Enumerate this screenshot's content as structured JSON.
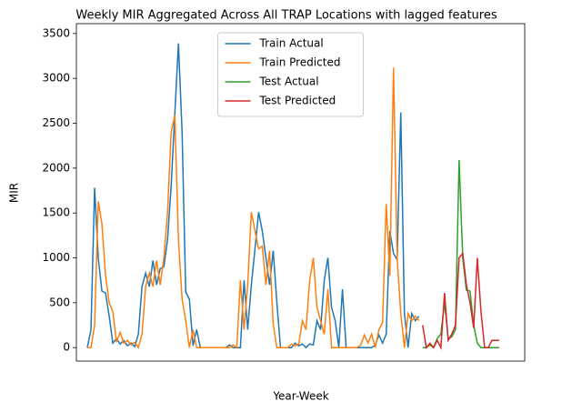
{
  "chart_data": {
    "type": "line",
    "title": "Weekly MIR Aggregated Across All TRAP Locations with lagged features",
    "x_label": "Year-Week",
    "y_label": "MIR",
    "x": [
      0,
      1,
      2,
      3,
      4,
      5,
      6,
      7,
      8,
      9,
      10,
      11,
      12,
      13,
      14,
      15,
      16,
      17,
      18,
      19,
      20,
      21,
      22,
      23,
      24,
      25,
      26,
      27,
      28,
      29,
      30,
      31,
      32,
      33,
      34,
      35,
      36,
      37,
      38,
      39,
      40,
      41,
      42,
      43,
      44,
      45,
      46,
      47,
      48,
      49,
      50,
      51,
      52,
      53,
      54,
      55,
      56,
      57,
      58,
      59,
      60,
      61,
      62,
      63,
      64,
      65,
      66,
      67,
      68,
      69,
      70,
      71,
      72,
      73,
      74,
      75,
      76,
      77,
      78,
      79,
      80,
      81,
      82,
      83,
      84,
      85,
      86,
      87,
      88,
      89,
      90,
      91,
      92,
      93,
      94,
      95,
      96,
      97,
      98,
      99,
      100,
      101,
      102,
      103,
      104,
      105,
      106,
      107,
      108,
      109,
      110,
      111,
      112,
      113
    ],
    "xlim": [
      -3,
      120
    ],
    "ylim": [
      -150,
      3610
    ],
    "yticks": [
      0,
      500,
      1000,
      1500,
      2000,
      2500,
      3000,
      3500
    ],
    "legend": "upper center",
    "series": [
      {
        "name": "Train Actual",
        "color": "#1f77b4",
        "values": [
          0,
          200,
          1780,
          1000,
          630,
          610,
          350,
          50,
          100,
          40,
          80,
          20,
          50,
          10,
          150,
          680,
          830,
          680,
          970,
          700,
          880,
          900,
          1200,
          1800,
          2600,
          3390,
          2400,
          620,
          540,
          20,
          200,
          0,
          0,
          0,
          0,
          0,
          0,
          0,
          0,
          30,
          0,
          0,
          0,
          750,
          200,
          700,
          1100,
          1510,
          1300,
          1000,
          700,
          1080,
          500,
          0,
          0,
          0,
          0,
          50,
          20,
          40,
          0,
          40,
          30,
          300,
          200,
          750,
          1000,
          450,
          300,
          0,
          650,
          0,
          0,
          0,
          0,
          0,
          0,
          0,
          0,
          30,
          140,
          50,
          150,
          1300,
          1050,
          980,
          2620,
          380,
          0,
          380,
          300,
          350,
          null,
          null,
          null,
          null,
          null,
          null,
          null,
          null,
          null,
          null,
          null,
          null,
          null,
          null,
          null,
          null,
          null,
          null,
          null,
          null,
          null,
          null
        ]
      },
      {
        "name": "Train Predicted",
        "color": "#ff7f0e",
        "values": [
          0,
          0,
          250,
          1630,
          1380,
          800,
          500,
          400,
          60,
          170,
          50,
          80,
          30,
          60,
          0,
          150,
          680,
          830,
          680,
          970,
          700,
          1000,
          1500,
          2400,
          2590,
          1200,
          540,
          300,
          0,
          200,
          0,
          0,
          0,
          0,
          0,
          0,
          0,
          0,
          0,
          0,
          30,
          0,
          750,
          200,
          700,
          1510,
          1300,
          1100,
          1130,
          700,
          1080,
          260,
          0,
          0,
          0,
          0,
          40,
          20,
          40,
          300,
          200,
          750,
          1000,
          450,
          300,
          150,
          650,
          0,
          0,
          0,
          0,
          0,
          0,
          0,
          0,
          30,
          140,
          50,
          150,
          0,
          200,
          280,
          1600,
          800,
          3120,
          1000,
          380,
          0,
          380,
          300,
          350,
          300,
          null,
          null,
          null,
          null,
          null,
          null,
          null,
          null,
          null,
          null,
          null,
          null,
          null,
          null,
          null,
          null,
          null,
          null,
          null,
          null,
          null,
          null
        ]
      },
      {
        "name": "Test Actual",
        "color": "#2ca02c",
        "values": [
          null,
          null,
          null,
          null,
          null,
          null,
          null,
          null,
          null,
          null,
          null,
          null,
          null,
          null,
          null,
          null,
          null,
          null,
          null,
          null,
          null,
          null,
          null,
          null,
          null,
          null,
          null,
          null,
          null,
          null,
          null,
          null,
          null,
          null,
          null,
          null,
          null,
          null,
          null,
          null,
          null,
          null,
          null,
          null,
          null,
          null,
          null,
          null,
          null,
          null,
          null,
          null,
          null,
          null,
          null,
          null,
          null,
          null,
          null,
          null,
          null,
          null,
          null,
          null,
          null,
          null,
          null,
          null,
          null,
          null,
          null,
          null,
          null,
          null,
          null,
          null,
          null,
          null,
          null,
          null,
          null,
          null,
          null,
          null,
          null,
          null,
          null,
          null,
          null,
          null,
          null,
          null,
          0,
          0,
          30,
          0,
          100,
          150,
          500,
          100,
          120,
          200,
          2090,
          1000,
          640,
          630,
          250,
          50,
          0,
          0,
          0,
          0,
          0,
          0
        ]
      },
      {
        "name": "Test Predicted",
        "color": "#d62728",
        "values": [
          null,
          null,
          null,
          null,
          null,
          null,
          null,
          null,
          null,
          null,
          null,
          null,
          null,
          null,
          null,
          null,
          null,
          null,
          null,
          null,
          null,
          null,
          null,
          null,
          null,
          null,
          null,
          null,
          null,
          null,
          null,
          null,
          null,
          null,
          null,
          null,
          null,
          null,
          null,
          null,
          null,
          null,
          null,
          null,
          null,
          null,
          null,
          null,
          null,
          null,
          null,
          null,
          null,
          null,
          null,
          null,
          null,
          null,
          null,
          null,
          null,
          null,
          null,
          null,
          null,
          null,
          null,
          null,
          null,
          null,
          null,
          null,
          null,
          null,
          null,
          null,
          null,
          null,
          null,
          null,
          null,
          null,
          null,
          null,
          null,
          null,
          null,
          null,
          null,
          null,
          null,
          null,
          250,
          0,
          50,
          0,
          80,
          0,
          610,
          80,
          150,
          250,
          1000,
          1050,
          700,
          500,
          220,
          1000,
          400,
          0,
          0,
          80,
          80,
          80
        ]
      }
    ]
  }
}
